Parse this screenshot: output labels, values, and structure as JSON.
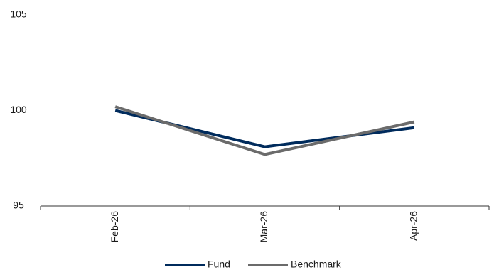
{
  "chart_data": {
    "type": "line",
    "categories": [
      "Feb-26",
      "Mar-26",
      "Apr-26"
    ],
    "series": [
      {
        "name": "Fund",
        "values": [
          100.0,
          98.1,
          99.1
        ],
        "color": "#002B5C"
      },
      {
        "name": "Benchmark",
        "values": [
          100.2,
          97.7,
          99.4
        ],
        "color": "#6B6B6B"
      }
    ],
    "ylim": [
      95,
      105
    ],
    "yticks": [
      95,
      100,
      105
    ],
    "grid": false,
    "legend": "bottom-center",
    "title": "",
    "xlabel": "",
    "ylabel": ""
  }
}
